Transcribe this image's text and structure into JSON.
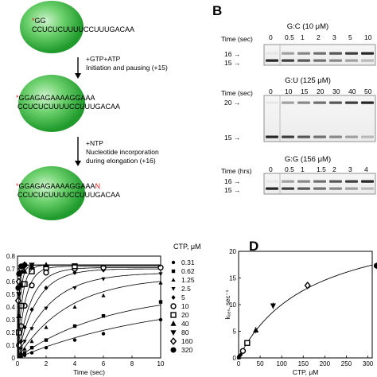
{
  "panel_a": {
    "step1": {
      "top": "GG",
      "bottom": "CCUCUCUUUUCCUUUGACAA",
      "star": "*"
    },
    "arrow1": {
      "line1": "+GTP+ATP",
      "line2": "Initiation and pausing (+15)"
    },
    "step2": {
      "top_pre": "GGAGAGAAAAGGAAA",
      "bottom": "CCUCUCUUUUCCUUUGACAA",
      "star": "*"
    },
    "arrow2": {
      "line1": "+NTP",
      "line2": "Nucleotide incorporation",
      "line3": "during elongation (+16)"
    },
    "step3": {
      "top_pre": "GGAGAGAAAAGGAAA",
      "top_n": "N",
      "bottom": "CCUCUCUUUUCCUUUGACAA",
      "star": "*"
    }
  },
  "panel_b": {
    "letter": "B",
    "gels": [
      {
        "title": "G:C (10 μM)",
        "time_label": "Time (sec)",
        "times": [
          "0",
          "0.5",
          "1",
          "2",
          "3",
          "5",
          "10"
        ],
        "bands": [
          "16",
          "15"
        ]
      },
      {
        "title": "G:U (125 μM)",
        "time_label": "Time (sec)",
        "times": [
          "0",
          "10",
          "15",
          "20",
          "30",
          "40",
          "50"
        ],
        "bands": [
          "20",
          "15"
        ]
      },
      {
        "title": "G:G (156 μM)",
        "time_label": "Time (hrs)",
        "times": [
          "0",
          "0.5",
          "1",
          "1.5",
          "2",
          "3",
          "4"
        ],
        "bands": [
          "16",
          "15"
        ]
      }
    ]
  },
  "panel_c": {
    "legend_title": "CTP, μM",
    "x_label": "Time (sec)",
    "x_ticks": [
      "0",
      "2",
      "4",
      "6",
      "8",
      "10"
    ],
    "y_ticks": [
      "0",
      "0.1",
      "0.2",
      "0.3",
      "0.4",
      "0.5",
      "0.6",
      "0.7",
      "0.8"
    ]
  },
  "panel_d": {
    "letter": "D",
    "x_label": "CTP, μM",
    "y_label": "kₒₑₛ, sec⁻¹",
    "x_ticks": [
      "0",
      "50",
      "100",
      "150",
      "200",
      "250",
      "300"
    ],
    "y_ticks": [
      "0",
      "5",
      "10",
      "15",
      "20"
    ]
  },
  "chart_data": [
    {
      "type": "scatter",
      "xlabel": "Time (sec)",
      "ylabel": "",
      "xlim": [
        0,
        10
      ],
      "ylim": [
        0,
        0.8
      ],
      "series": [
        {
          "name": "0.31",
          "marker": "circle",
          "x": [
            0.25,
            0.5,
            1,
            2,
            4,
            6,
            10
          ],
          "y": [
            0.01,
            0.02,
            0.04,
            0.08,
            0.14,
            0.19,
            0.3
          ]
        },
        {
          "name": "0.62",
          "marker": "square",
          "x": [
            0.25,
            0.5,
            1,
            2,
            4,
            6,
            10
          ],
          "y": [
            0.02,
            0.04,
            0.08,
            0.14,
            0.25,
            0.33,
            0.44
          ]
        },
        {
          "name": "1.25",
          "marker": "triangle-up",
          "x": [
            0.25,
            0.5,
            1,
            2,
            4,
            6,
            10
          ],
          "y": [
            0.04,
            0.07,
            0.13,
            0.24,
            0.4,
            0.49,
            0.59
          ]
        },
        {
          "name": "2.5",
          "marker": "triangle-down",
          "x": [
            0.25,
            0.5,
            1,
            2,
            4,
            6,
            10
          ],
          "y": [
            0.07,
            0.13,
            0.23,
            0.39,
            0.55,
            0.62,
            0.66
          ]
        },
        {
          "name": "5",
          "marker": "diamond",
          "x": [
            0.25,
            0.5,
            1,
            2,
            4,
            6,
            10
          ],
          "y": [
            0.13,
            0.24,
            0.38,
            0.55,
            0.67,
            0.69,
            0.7
          ]
        },
        {
          "name": "10",
          "marker": "open-circle",
          "x": [
            0.1,
            0.25,
            0.5,
            1,
            2,
            4,
            6,
            10
          ],
          "y": [
            0.1,
            0.25,
            0.41,
            0.57,
            0.67,
            0.7,
            0.71,
            0.71
          ]
        },
        {
          "name": "20",
          "marker": "open-square",
          "x": [
            0.1,
            0.25,
            0.5,
            1,
            2,
            4
          ],
          "y": [
            0.2,
            0.41,
            0.58,
            0.68,
            0.71,
            0.72
          ]
        },
        {
          "name": "40",
          "marker": "filled-triangle-big",
          "x": [
            0.1,
            0.25,
            0.5,
            1,
            2
          ],
          "y": [
            0.33,
            0.57,
            0.68,
            0.72,
            0.73
          ]
        },
        {
          "name": "80",
          "marker": "filled-triangle-down-big",
          "x": [
            0.1,
            0.25,
            0.5,
            1
          ],
          "y": [
            0.5,
            0.67,
            0.72,
            0.73
          ]
        },
        {
          "name": "160",
          "marker": "open-diamond",
          "x": [
            0.05,
            0.1,
            0.25,
            0.5
          ],
          "y": [
            0.45,
            0.6,
            0.7,
            0.73
          ]
        },
        {
          "name": "320",
          "marker": "filled-circle-big",
          "x": [
            0.05,
            0.1,
            0.25,
            0.5
          ],
          "y": [
            0.55,
            0.66,
            0.72,
            0.73
          ]
        }
      ]
    },
    {
      "type": "scatter",
      "xlabel": "CTP, μM",
      "ylabel": "kₒₑₛ, sec⁻¹",
      "xlim": [
        0,
        310
      ],
      "ylim": [
        0,
        20
      ],
      "series": [
        {
          "name": "",
          "x": [
            0.31,
            0.62,
            1.25,
            2.5,
            5,
            10,
            20,
            40,
            80,
            160,
            320
          ],
          "y": [
            0.04,
            0.08,
            0.15,
            0.3,
            0.6,
            1.3,
            2.8,
            5.2,
            9.8,
            13.6,
            17.3
          ]
        }
      ]
    }
  ]
}
